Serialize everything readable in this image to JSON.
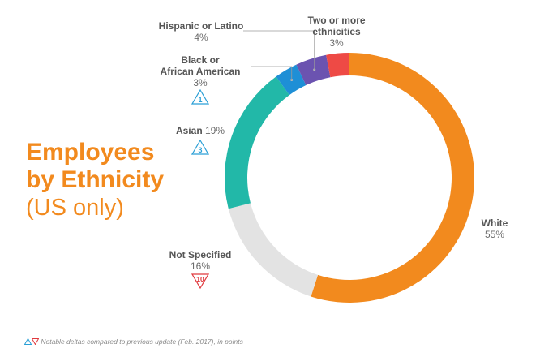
{
  "title": {
    "line1": "Employees",
    "line2": "by Ethnicity",
    "subtitle": "(US only)",
    "color": "#f28a1e",
    "subtitle_color": "#f28a1e"
  },
  "footnote": "Notable deltas compared to previous update (Feb. 2017), in points",
  "colors": {
    "delta_up": "#2a9fd6",
    "delta_down": "#e0393e"
  },
  "chart_data": {
    "type": "pie",
    "donut": true,
    "slices": [
      {
        "label": "White",
        "value": 55,
        "value_label": "55%",
        "color": "#f28a1e",
        "delta": null
      },
      {
        "label": "Not Specified",
        "value": 16,
        "value_label": "16%",
        "color": "#e3e3e3",
        "delta": {
          "direction": "down",
          "value": "10"
        }
      },
      {
        "label": "Asian",
        "value": 19,
        "value_label": "19%",
        "color": "#22b8a8",
        "delta": {
          "direction": "up",
          "value": "3"
        }
      },
      {
        "label": "Black or African American",
        "label_lines": [
          "Black or",
          "African American"
        ],
        "value": 3,
        "value_label": "3%",
        "color": "#1e8fd6",
        "delta": {
          "direction": "up",
          "value": "1"
        }
      },
      {
        "label": "Hispanic or Latino",
        "value": 4,
        "value_label": "4%",
        "color": "#6b53b0",
        "delta": null
      },
      {
        "label": "Two or more ethnicities",
        "label_lines": [
          "Two or more",
          "ethnicities"
        ],
        "value": 3,
        "value_label": "3%",
        "color": "#ee4a45",
        "delta": null
      }
    ]
  }
}
